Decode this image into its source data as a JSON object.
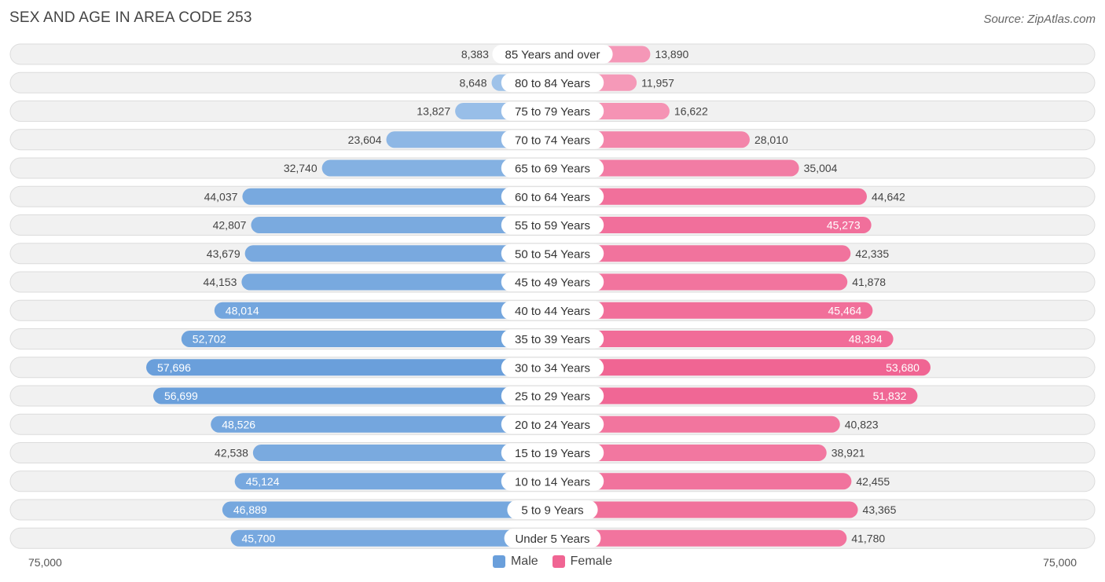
{
  "header": {
    "title": "SEX AND AGE IN AREA CODE 253",
    "source": "Source: ZipAtlas.com"
  },
  "legend": {
    "male_label": "Male",
    "female_label": "Female"
  },
  "axis": {
    "left_label": "75,000",
    "right_label": "75,000"
  },
  "colors": {
    "male_light": "#a7c8ec",
    "male_dark": "#6a9fdb",
    "female_light": "#f7a8c3",
    "female_dark": "#f06593",
    "row_bg": "#f1f1f1",
    "row_border": "#dcdcdc"
  },
  "chart_data": {
    "type": "bar",
    "orientation": "horizontal-butterfly",
    "title": "SEX AND AGE IN AREA CODE 253",
    "xlim": [
      -75000,
      75000
    ],
    "categories": [
      "85 Years and over",
      "80 to 84 Years",
      "75 to 79 Years",
      "70 to 74 Years",
      "65 to 69 Years",
      "60 to 64 Years",
      "55 to 59 Years",
      "50 to 54 Years",
      "45 to 49 Years",
      "40 to 44 Years",
      "35 to 39 Years",
      "30 to 34 Years",
      "25 to 29 Years",
      "20 to 24 Years",
      "15 to 19 Years",
      "10 to 14 Years",
      "5 to 9 Years",
      "Under 5 Years"
    ],
    "series": [
      {
        "name": "Male",
        "values": [
          8383,
          8648,
          13827,
          23604,
          32740,
          44037,
          42807,
          43679,
          44153,
          48014,
          52702,
          57696,
          56699,
          48526,
          42538,
          45124,
          46889,
          45700
        ],
        "labels": [
          "8,383",
          "8,648",
          "13,827",
          "23,604",
          "32,740",
          "44,037",
          "42,807",
          "43,679",
          "44,153",
          "48,014",
          "52,702",
          "57,696",
          "56,699",
          "48,526",
          "42,538",
          "45,124",
          "46,889",
          "45,700"
        ]
      },
      {
        "name": "Female",
        "values": [
          13890,
          11957,
          16622,
          28010,
          35004,
          44642,
          45273,
          42335,
          41878,
          45464,
          48394,
          53680,
          51832,
          40823,
          38921,
          42455,
          43365,
          41780
        ],
        "labels": [
          "13,890",
          "11,957",
          "16,622",
          "28,010",
          "35,004",
          "44,642",
          "45,273",
          "42,335",
          "41,878",
          "45,464",
          "48,394",
          "53,680",
          "51,832",
          "40,823",
          "38,921",
          "42,455",
          "43,365",
          "41,780"
        ]
      }
    ],
    "legend": "bottom-center"
  }
}
